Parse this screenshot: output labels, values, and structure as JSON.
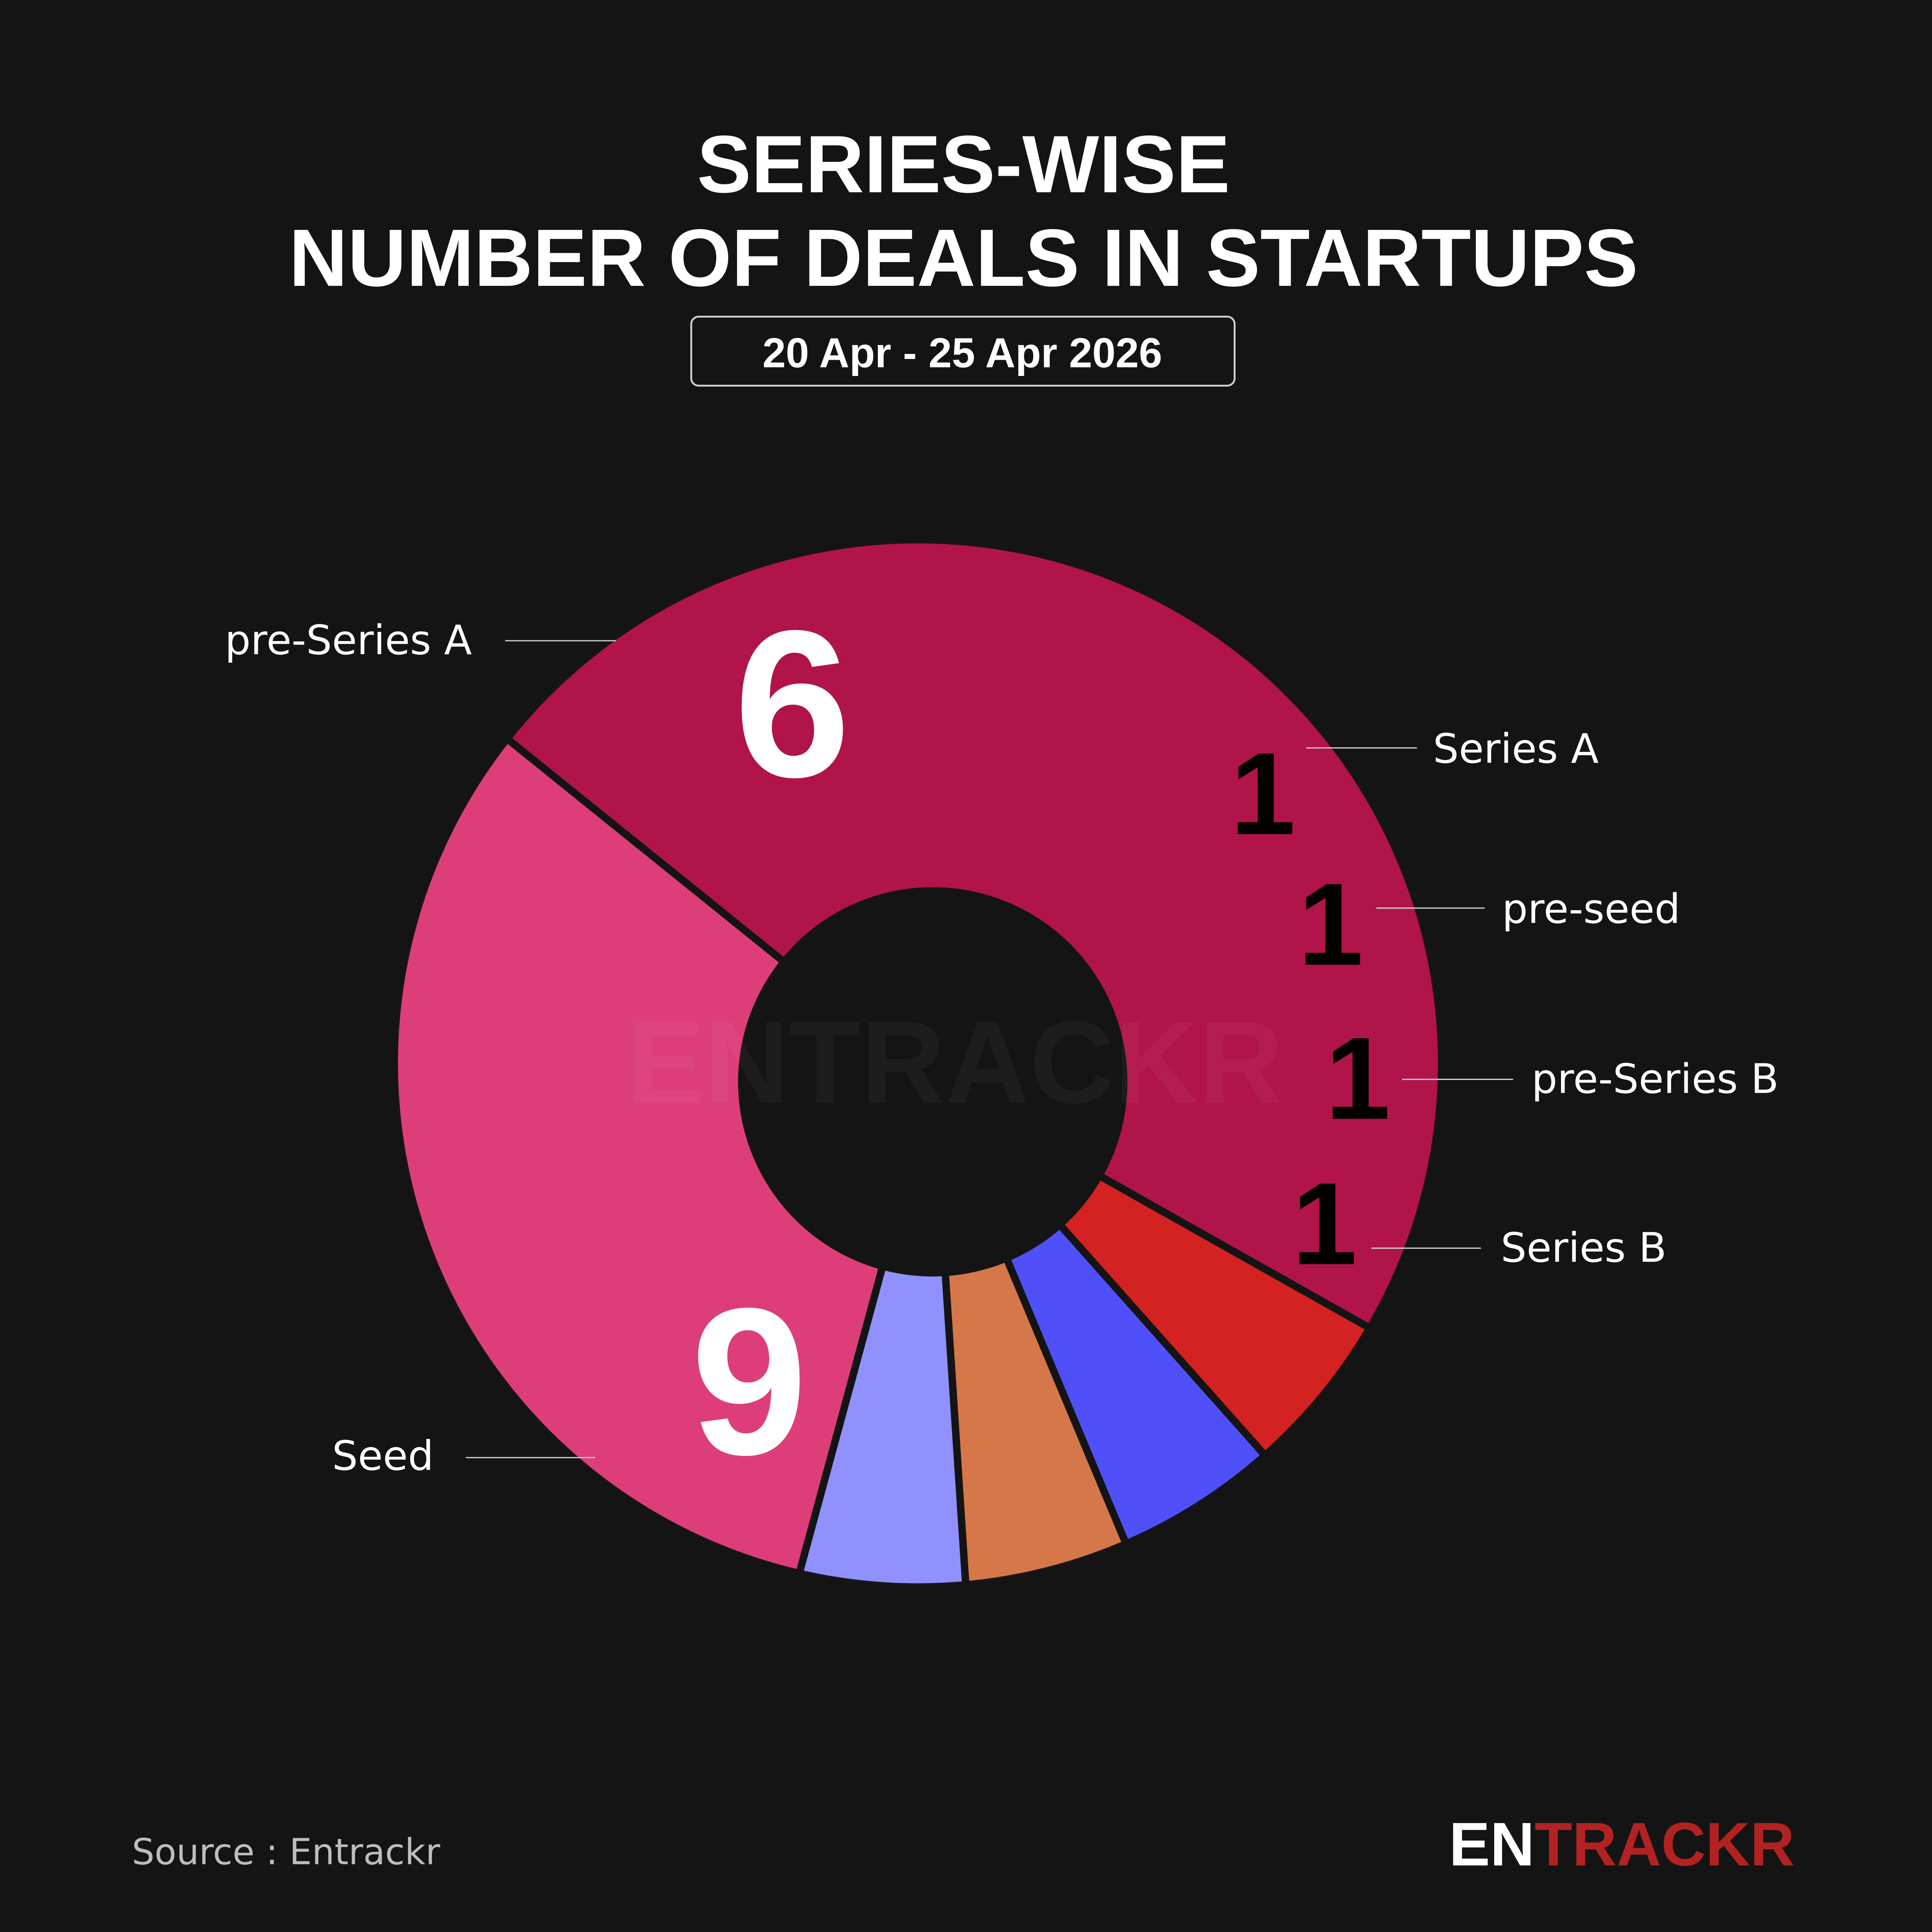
{
  "header": {
    "title_line1": "SERIES-WISE",
    "title_line2": "NUMBER OF DEALS IN STARTUPS",
    "date_range": "20 Apr - 25 Apr 2026"
  },
  "chart_data": {
    "type": "pie",
    "variant": "donut",
    "categories": [
      "Seed",
      "pre-Series A",
      "Series A",
      "pre-seed",
      "pre-Series B",
      "Series B"
    ],
    "values": [
      9,
      6,
      1,
      1,
      1,
      1
    ],
    "value_labels": [
      "9",
      "6",
      "1",
      "1",
      "1",
      "1"
    ],
    "colors": [
      "#B0144A",
      "#DD3E7A",
      "#9091FF",
      "#D6774A",
      "#5050FA",
      "#D42121"
    ],
    "legend": "none (leader-line labels)"
  },
  "footer": {
    "source": "Source : Entrackr",
    "logo_part1": "EN",
    "logo_part2": "TRACKR",
    "logo_colors": [
      "#FFFFFF",
      "#B22222"
    ]
  },
  "watermark": "ENTRACKR"
}
